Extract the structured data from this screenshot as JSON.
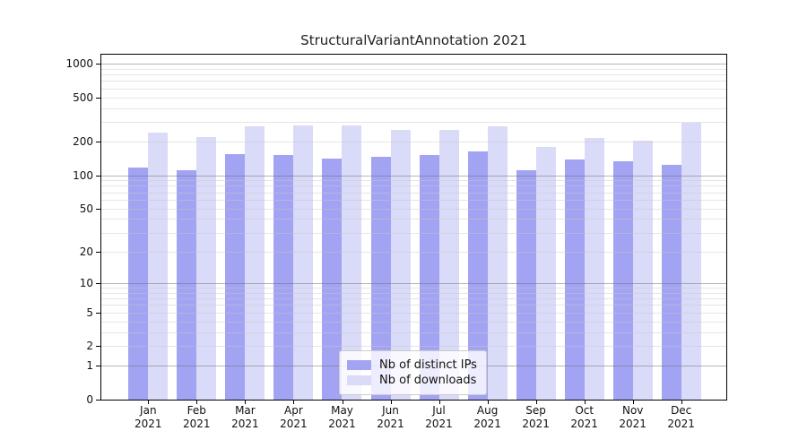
{
  "title": "StructuralVariantAnnotation 2021",
  "year": "2021",
  "colors": {
    "ips_bar": "#a3a3f3",
    "downloads_bar": "#dadaf9",
    "grid_minor": "rgba(200,200,200,0.45)",
    "grid_major": "rgba(110,110,110,0.5)",
    "axis": "#000000",
    "legend_border": "#cccccc"
  },
  "chart_data": {
    "type": "bar",
    "title": "StructuralVariantAnnotation 2021",
    "categories": [
      "Jan 2021",
      "Feb 2021",
      "Mar 2021",
      "Apr 2021",
      "May 2021",
      "Jun 2021",
      "Jul 2021",
      "Aug 2021",
      "Sep 2021",
      "Oct 2021",
      "Nov 2021",
      "Dec 2021"
    ],
    "months": [
      "Jan",
      "Feb",
      "Mar",
      "Apr",
      "May",
      "Jun",
      "Jul",
      "Aug",
      "Sep",
      "Oct",
      "Nov",
      "Dec"
    ],
    "series": [
      {
        "name": "Nb of distinct IPs",
        "values": [
          118,
          111,
          154,
          151,
          142,
          146,
          152,
          165,
          110,
          138,
          134,
          124
        ]
      },
      {
        "name": "Nb of downloads",
        "values": [
          240,
          220,
          274,
          280,
          280,
          255,
          257,
          273,
          180,
          215,
          203,
          298
        ]
      }
    ],
    "xlabel": "",
    "ylabel": "",
    "yscale": "log10(1+v)",
    "ylim": [
      0,
      1200
    ],
    "yticks": [
      1000,
      500,
      200,
      100,
      50,
      20,
      10,
      5,
      2,
      1,
      0
    ],
    "grid": "horizontal, minor 2-9 per decade, majors at powers of 10, drawn over bars",
    "legend_position": "bottom-center"
  },
  "legend": {
    "items": [
      {
        "label": "Nb of distinct IPs"
      },
      {
        "label": "Nb of downloads"
      }
    ]
  }
}
